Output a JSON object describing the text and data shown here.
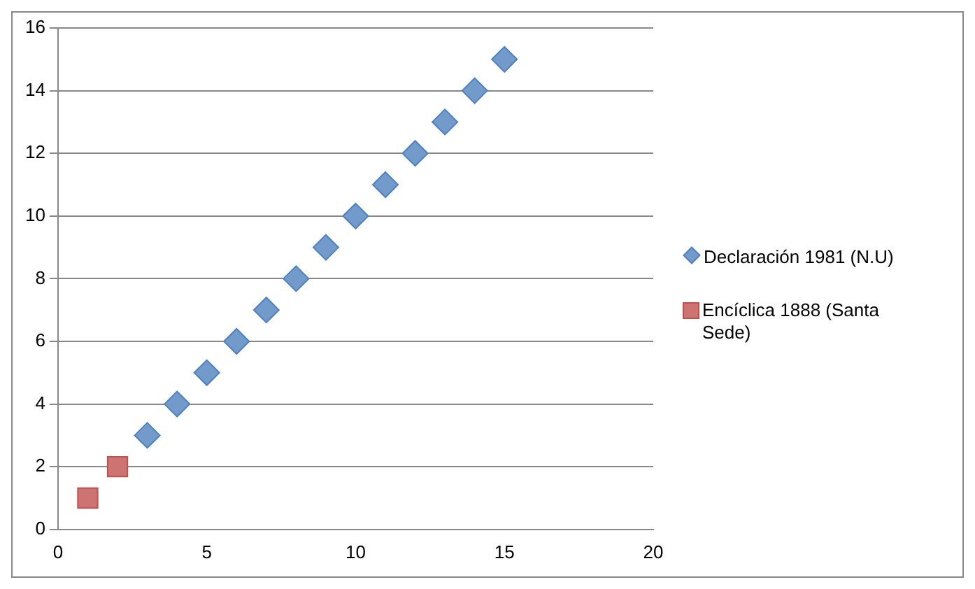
{
  "chart_data": {
    "type": "scatter",
    "series": [
      {
        "name": "Declaración 1981 (N.U)",
        "color": "#4f81bd",
        "marker": "diamond",
        "x": [
          3,
          4,
          5,
          6,
          7,
          8,
          9,
          10,
          11,
          12,
          13,
          14,
          15
        ],
        "values": [
          3,
          4,
          5,
          6,
          7,
          8,
          9,
          10,
          11,
          12,
          13,
          14,
          15
        ]
      },
      {
        "name": "Encíclica 1888 (Santa Sede)",
        "color": "#c0504d",
        "marker": "square",
        "x": [
          1,
          2
        ],
        "values": [
          1,
          2
        ]
      }
    ],
    "xlim": [
      0,
      20
    ],
    "xticks": [
      0,
      5,
      10,
      15,
      20
    ],
    "ylim": [
      0,
      16
    ],
    "yticks": [
      0,
      2,
      4,
      6,
      8,
      10,
      12,
      14,
      16
    ],
    "grid": "y",
    "legend": "right"
  }
}
